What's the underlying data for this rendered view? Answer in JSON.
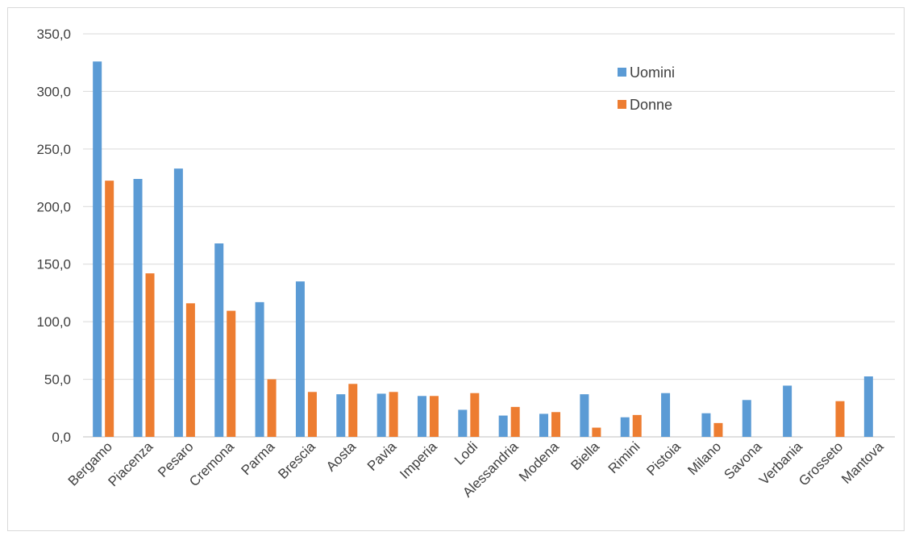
{
  "chart_data": {
    "type": "bar",
    "title": "",
    "xlabel": "",
    "ylabel": "",
    "ylim": [
      0,
      350
    ],
    "yticks": [
      "0,0",
      "50,0",
      "100,0",
      "150,0",
      "200,0",
      "250,0",
      "300,0",
      "350,0"
    ],
    "ytick_values": [
      0,
      50,
      100,
      150,
      200,
      250,
      300,
      350
    ],
    "grid": true,
    "legend_position": "top-right",
    "categories": [
      "Bergamo",
      "Piacenza",
      "Pesaro",
      "Cremona",
      "Parma",
      "Brescia",
      "Aosta",
      "Pavia",
      "Imperia",
      "Lodi",
      "Alessandria",
      "Modena",
      "Biella",
      "Rimini",
      "Pistoia",
      "Milano",
      "Savona",
      "Verbania",
      "Grosseto",
      "Mantova"
    ],
    "series": [
      {
        "name": "Uomini",
        "color": "#5b9bd5",
        "values": [
          326,
          224,
          233,
          168,
          117,
          135,
          37,
          37.5,
          35.5,
          23.5,
          18.5,
          20,
          37,
          17,
          38,
          20.5,
          32,
          44.5,
          null,
          52.5
        ]
      },
      {
        "name": "Donne",
        "color": "#ed7d31",
        "values": [
          222.5,
          142,
          116,
          109.5,
          50,
          39,
          46,
          39,
          35.5,
          38,
          26,
          21.5,
          8,
          19,
          null,
          12,
          null,
          null,
          31,
          null
        ]
      }
    ]
  },
  "colors": {
    "gridline": "#d9d9d9",
    "axis": "#bfbfbf",
    "text": "#404040"
  }
}
